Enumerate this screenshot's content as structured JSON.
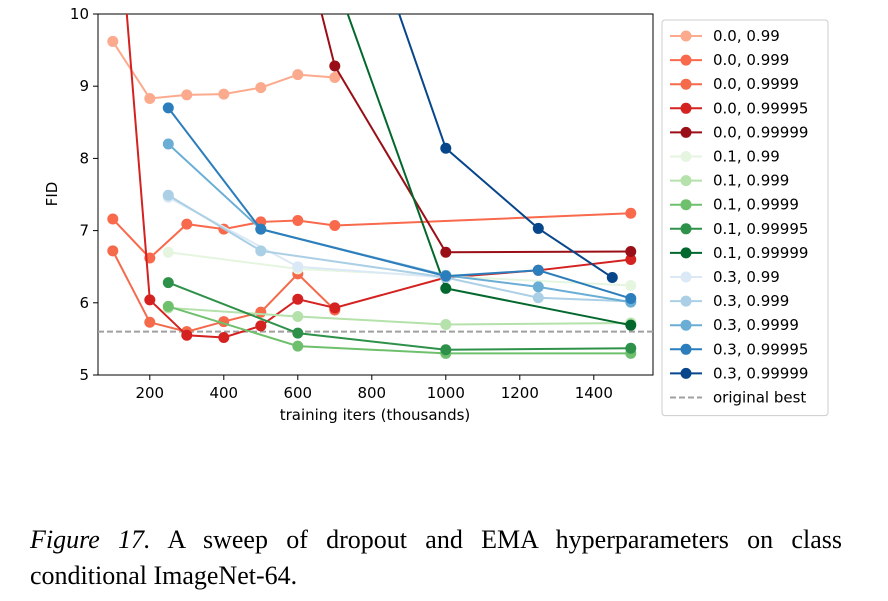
{
  "chart_data": {
    "type": "line",
    "xlabel": "training iters (thousands)",
    "ylabel": "FID",
    "xlim": [
      60,
      1560
    ],
    "ylim": [
      5,
      10
    ],
    "xticks": [
      200,
      400,
      600,
      800,
      1000,
      1200,
      1400
    ],
    "yticks": [
      5,
      6,
      7,
      8,
      9,
      10
    ],
    "legend_position": "right",
    "reference_line": {
      "name": "original best",
      "y": 5.6,
      "color": "#a0a0a0",
      "style": "dashed"
    },
    "series": [
      {
        "name": "0.0, 0.99",
        "color": "#fcaa8d",
        "points": [
          [
            100,
            9.62
          ],
          [
            200,
            8.83
          ],
          [
            300,
            8.88
          ],
          [
            400,
            8.89
          ],
          [
            500,
            8.98
          ],
          [
            600,
            9.16
          ],
          [
            700,
            9.12
          ]
        ]
      },
      {
        "name": "0.0, 0.999",
        "color": "#f9694c",
        "points": [
          [
            100,
            7.16
          ],
          [
            200,
            6.62
          ],
          [
            300,
            7.09
          ],
          [
            400,
            7.02
          ],
          [
            500,
            7.12
          ],
          [
            600,
            7.14
          ],
          [
            700,
            7.07
          ],
          [
            1500,
            7.24
          ]
        ]
      },
      {
        "name": "0.0, 0.9999",
        "color": "#f46a4b",
        "points": [
          [
            100,
            6.72
          ],
          [
            200,
            5.73
          ],
          [
            300,
            5.6
          ],
          [
            400,
            5.74
          ],
          [
            500,
            5.87
          ],
          [
            600,
            6.4
          ],
          [
            700,
            5.9
          ]
        ]
      },
      {
        "name": "0.0, 0.99995",
        "color": "#d42221",
        "points": [
          [
            130,
            10.5
          ],
          [
            200,
            6.04
          ],
          [
            300,
            5.55
          ],
          [
            400,
            5.52
          ],
          [
            500,
            5.68
          ],
          [
            600,
            6.05
          ],
          [
            700,
            5.93
          ],
          [
            1000,
            6.35
          ],
          [
            1250,
            6.45
          ],
          [
            1500,
            6.6
          ]
        ]
      },
      {
        "name": "0.0, 0.99999",
        "color": "#9a0f17",
        "points": [
          [
            640,
            10.5
          ],
          [
            700,
            9.28
          ],
          [
            1000,
            6.7
          ],
          [
            1500,
            6.71
          ]
        ]
      },
      {
        "name": "0.1, 0.99",
        "color": "#e5f5e0",
        "points": [
          [
            250,
            6.7
          ],
          [
            600,
            6.47
          ],
          [
            1500,
            6.24
          ]
        ]
      },
      {
        "name": "0.1, 0.999",
        "color": "#b5e1ab",
        "points": [
          [
            250,
            5.93
          ],
          [
            600,
            5.81
          ],
          [
            1000,
            5.7
          ],
          [
            1500,
            5.72
          ]
        ]
      },
      {
        "name": "0.1, 0.9999",
        "color": "#6ec06d",
        "points": [
          [
            250,
            5.95
          ],
          [
            600,
            5.4
          ],
          [
            1000,
            5.3
          ],
          [
            1500,
            5.3
          ]
        ]
      },
      {
        "name": "0.1, 0.99995",
        "color": "#2e9149",
        "points": [
          [
            250,
            6.28
          ],
          [
            600,
            5.58
          ],
          [
            1000,
            5.35
          ],
          [
            1500,
            5.37
          ]
        ]
      },
      {
        "name": "0.1, 0.99999",
        "color": "#03682d",
        "points": [
          [
            700,
            10.5
          ],
          [
            1000,
            6.2
          ],
          [
            1500,
            5.69
          ]
        ]
      },
      {
        "name": "0.3, 0.99",
        "color": "#dbe9f6",
        "points": [
          [
            250,
            7.46
          ],
          [
            600,
            6.5
          ],
          [
            1000,
            6.35
          ]
        ]
      },
      {
        "name": "0.3, 0.999",
        "color": "#abcfe5",
        "points": [
          [
            250,
            7.49
          ],
          [
            500,
            6.72
          ],
          [
            1000,
            6.35
          ],
          [
            1250,
            6.07
          ],
          [
            1500,
            6.02
          ]
        ]
      },
      {
        "name": "0.3, 0.9999",
        "color": "#6aaed6",
        "points": [
          [
            250,
            8.2
          ],
          [
            500,
            7.02
          ],
          [
            1000,
            6.38
          ],
          [
            1250,
            6.22
          ],
          [
            1500,
            6.01
          ]
        ]
      },
      {
        "name": "0.3, 0.99995",
        "color": "#2c7dbb",
        "points": [
          [
            250,
            8.7
          ],
          [
            500,
            7.02
          ],
          [
            1000,
            6.37
          ],
          [
            1250,
            6.45
          ],
          [
            1500,
            6.06
          ]
        ]
      },
      {
        "name": "0.3, 0.99999",
        "color": "#08468b",
        "points": [
          [
            840,
            10.5
          ],
          [
            1000,
            8.14
          ],
          [
            1250,
            7.03
          ],
          [
            1450,
            6.35
          ]
        ]
      }
    ]
  },
  "caption": {
    "figure_label": "Figure 17.",
    "text": "A sweep of dropout and EMA hyperparameters on class conditional ImageNet-64."
  }
}
